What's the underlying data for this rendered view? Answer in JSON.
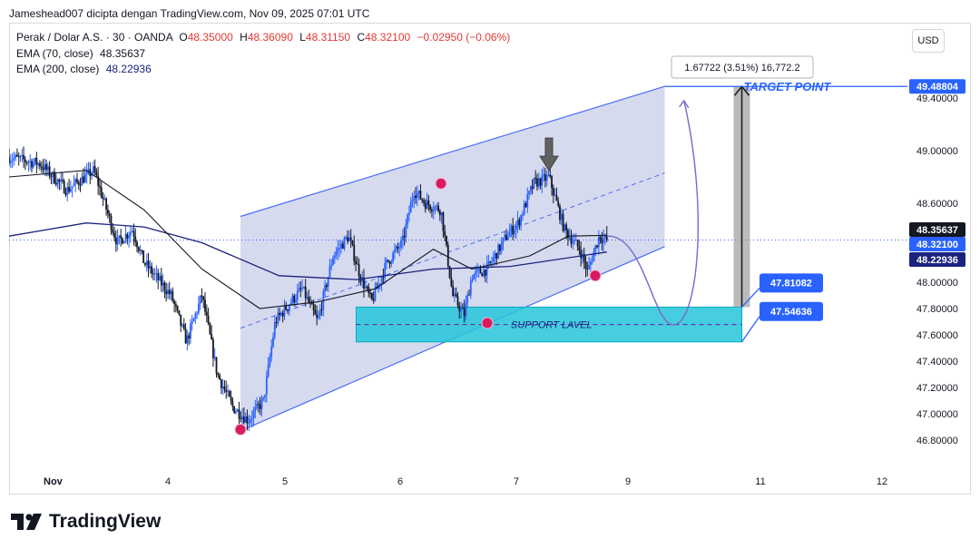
{
  "header": {
    "attribution": "Jameshead007 dicipta dengan TradingView.com, Nov 09, 2025 07:01 UTC"
  },
  "legend": {
    "symbol": "Perak / Dolar A.S. · 30 · OANDA",
    "o_label": "O",
    "o_value": "48.35000",
    "h_label": "H",
    "h_value": "48.36090",
    "l_label": "L",
    "l_value": "48.31150",
    "c_label": "C",
    "c_value": "48.32100",
    "change": "−0.02950 (−0.06%)",
    "ema70_label": "EMA (70, close)",
    "ema70_value": "48.35637",
    "ema200_label": "EMA (200, close)",
    "ema200_value": "48.22936"
  },
  "currency_button": "USD",
  "logo_text": "TradingView",
  "colors": {
    "up": "#2962ff",
    "down": "#131722",
    "channel": "#4c6ef5",
    "support_zone": "#26c6da",
    "ema70": "#131722",
    "ema200": "#1a237e",
    "marker": "#d81b60",
    "accent": "#2962ff"
  },
  "chart_data": {
    "type": "candlestick",
    "symbol": "Perak / Dolar A.S.",
    "timeframe": "30",
    "x_ticks": [
      "Nov",
      "4",
      "5",
      "6",
      "7",
      "9",
      "11",
      "12"
    ],
    "y_ticks": [
      "49.40000",
      "49.00000",
      "48.60000",
      "48.00000",
      "47.80000",
      "47.60000",
      "47.40000",
      "47.20000",
      "47.00000",
      "46.80000"
    ],
    "price_key_points": [
      {
        "t": 0,
        "p": 48.95
      },
      {
        "t": 0.8,
        "p": 48.9
      },
      {
        "t": 1.5,
        "p": 48.7
      },
      {
        "t": 2.2,
        "p": 48.85
      },
      {
        "t": 2.8,
        "p": 48.3
      },
      {
        "t": 3.2,
        "p": 48.4
      },
      {
        "t": 3.5,
        "p": 48.15
      },
      {
        "t": 4.2,
        "p": 47.9
      },
      {
        "t": 4.6,
        "p": 47.55
      },
      {
        "t": 5.0,
        "p": 47.9
      },
      {
        "t": 5.4,
        "p": 47.3
      },
      {
        "t": 5.8,
        "p": 47.05
      },
      {
        "t": 6.2,
        "p": 46.95
      },
      {
        "t": 6.6,
        "p": 47.1
      },
      {
        "t": 6.9,
        "p": 47.7
      },
      {
        "t": 7.3,
        "p": 47.85
      },
      {
        "t": 7.6,
        "p": 47.95
      },
      {
        "t": 8.0,
        "p": 47.7
      },
      {
        "t": 8.4,
        "p": 48.2
      },
      {
        "t": 8.8,
        "p": 48.35
      },
      {
        "t": 9.1,
        "p": 48.05
      },
      {
        "t": 9.4,
        "p": 47.85
      },
      {
        "t": 9.8,
        "p": 48.15
      },
      {
        "t": 10.2,
        "p": 48.3
      },
      {
        "t": 10.5,
        "p": 48.7
      },
      {
        "t": 10.8,
        "p": 48.6
      },
      {
        "t": 11.2,
        "p": 48.55
      },
      {
        "t": 11.5,
        "p": 47.9
      },
      {
        "t": 11.8,
        "p": 47.75
      },
      {
        "t": 12.0,
        "p": 48.05
      },
      {
        "t": 12.4,
        "p": 48.1
      },
      {
        "t": 12.9,
        "p": 48.35
      },
      {
        "t": 13.2,
        "p": 48.45
      },
      {
        "t": 13.6,
        "p": 48.75
      },
      {
        "t": 14.0,
        "p": 48.8
      },
      {
        "t": 14.4,
        "p": 48.4
      },
      {
        "t": 14.8,
        "p": 48.25
      },
      {
        "t": 15.0,
        "p": 48.08
      },
      {
        "t": 15.3,
        "p": 48.35
      },
      {
        "t": 15.5,
        "p": 48.32
      }
    ],
    "ema70_points": [
      {
        "t": 0,
        "p": 48.8
      },
      {
        "t": 2,
        "p": 48.85
      },
      {
        "t": 3.5,
        "p": 48.55
      },
      {
        "t": 5,
        "p": 48.1
      },
      {
        "t": 6.5,
        "p": 47.8
      },
      {
        "t": 8,
        "p": 47.85
      },
      {
        "t": 9.5,
        "p": 47.95
      },
      {
        "t": 11,
        "p": 48.25
      },
      {
        "t": 12,
        "p": 48.1
      },
      {
        "t": 13.5,
        "p": 48.2
      },
      {
        "t": 14.5,
        "p": 48.35
      },
      {
        "t": 15.5,
        "p": 48.35637
      }
    ],
    "ema200_points": [
      {
        "t": 0,
        "p": 48.35
      },
      {
        "t": 2,
        "p": 48.45
      },
      {
        "t": 3.5,
        "p": 48.42
      },
      {
        "t": 5,
        "p": 48.3
      },
      {
        "t": 7,
        "p": 48.05
      },
      {
        "t": 9,
        "p": 48.02
      },
      {
        "t": 11,
        "p": 48.1
      },
      {
        "t": 13,
        "p": 48.12
      },
      {
        "t": 15.5,
        "p": 48.22936
      }
    ],
    "channel": {
      "lower_start": {
        "t": 6.0,
        "p": 46.87
      },
      "lower_end": {
        "t": 17.0,
        "p": 48.27
      },
      "upper_start": {
        "t": 6.0,
        "p": 48.5
      },
      "upper_end": {
        "t": 17.0,
        "p": 49.48804
      },
      "mid_start": {
        "t": 6.0,
        "p": 47.65
      },
      "mid_end": {
        "t": 17.0,
        "p": 48.83
      }
    },
    "support_zone": {
      "top": 47.81082,
      "bottom": 47.54636,
      "label": "SUPPORT LAVEL",
      "t_start": 9.0,
      "t_end": 19.0
    },
    "markers": [
      {
        "t": 6.0,
        "p": 46.88
      },
      {
        "t": 11.2,
        "p": 48.75
      },
      {
        "t": 12.4,
        "p": 47.69
      },
      {
        "t": 15.2,
        "p": 48.05
      }
    ],
    "projection_path": [
      {
        "t": 15.5,
        "p": 48.35
      },
      {
        "t": 16.5,
        "p": 48.1
      },
      {
        "t": 17.3,
        "p": 47.68
      },
      {
        "t": 18.0,
        "p": 48.6
      },
      {
        "t": 17.5,
        "p": 49.38
      }
    ],
    "target": {
      "price": 49.48804,
      "label": "TARGET POINT"
    },
    "measure": {
      "text": "1.67722 (3.51%) 16,772.2",
      "from": 47.81082,
      "to": 49.48804
    },
    "price_labels": [
      {
        "value": "49.48804",
        "style": "blue"
      },
      {
        "value": "48.35637",
        "style": "black"
      },
      {
        "value": "48.32100",
        "style": "blue"
      },
      {
        "value": "48.22936",
        "style": "navy"
      }
    ],
    "zone_labels": [
      "47.81082",
      "47.54636"
    ],
    "last_price": 48.321,
    "ylim": [
      46.73,
      49.6
    ]
  }
}
